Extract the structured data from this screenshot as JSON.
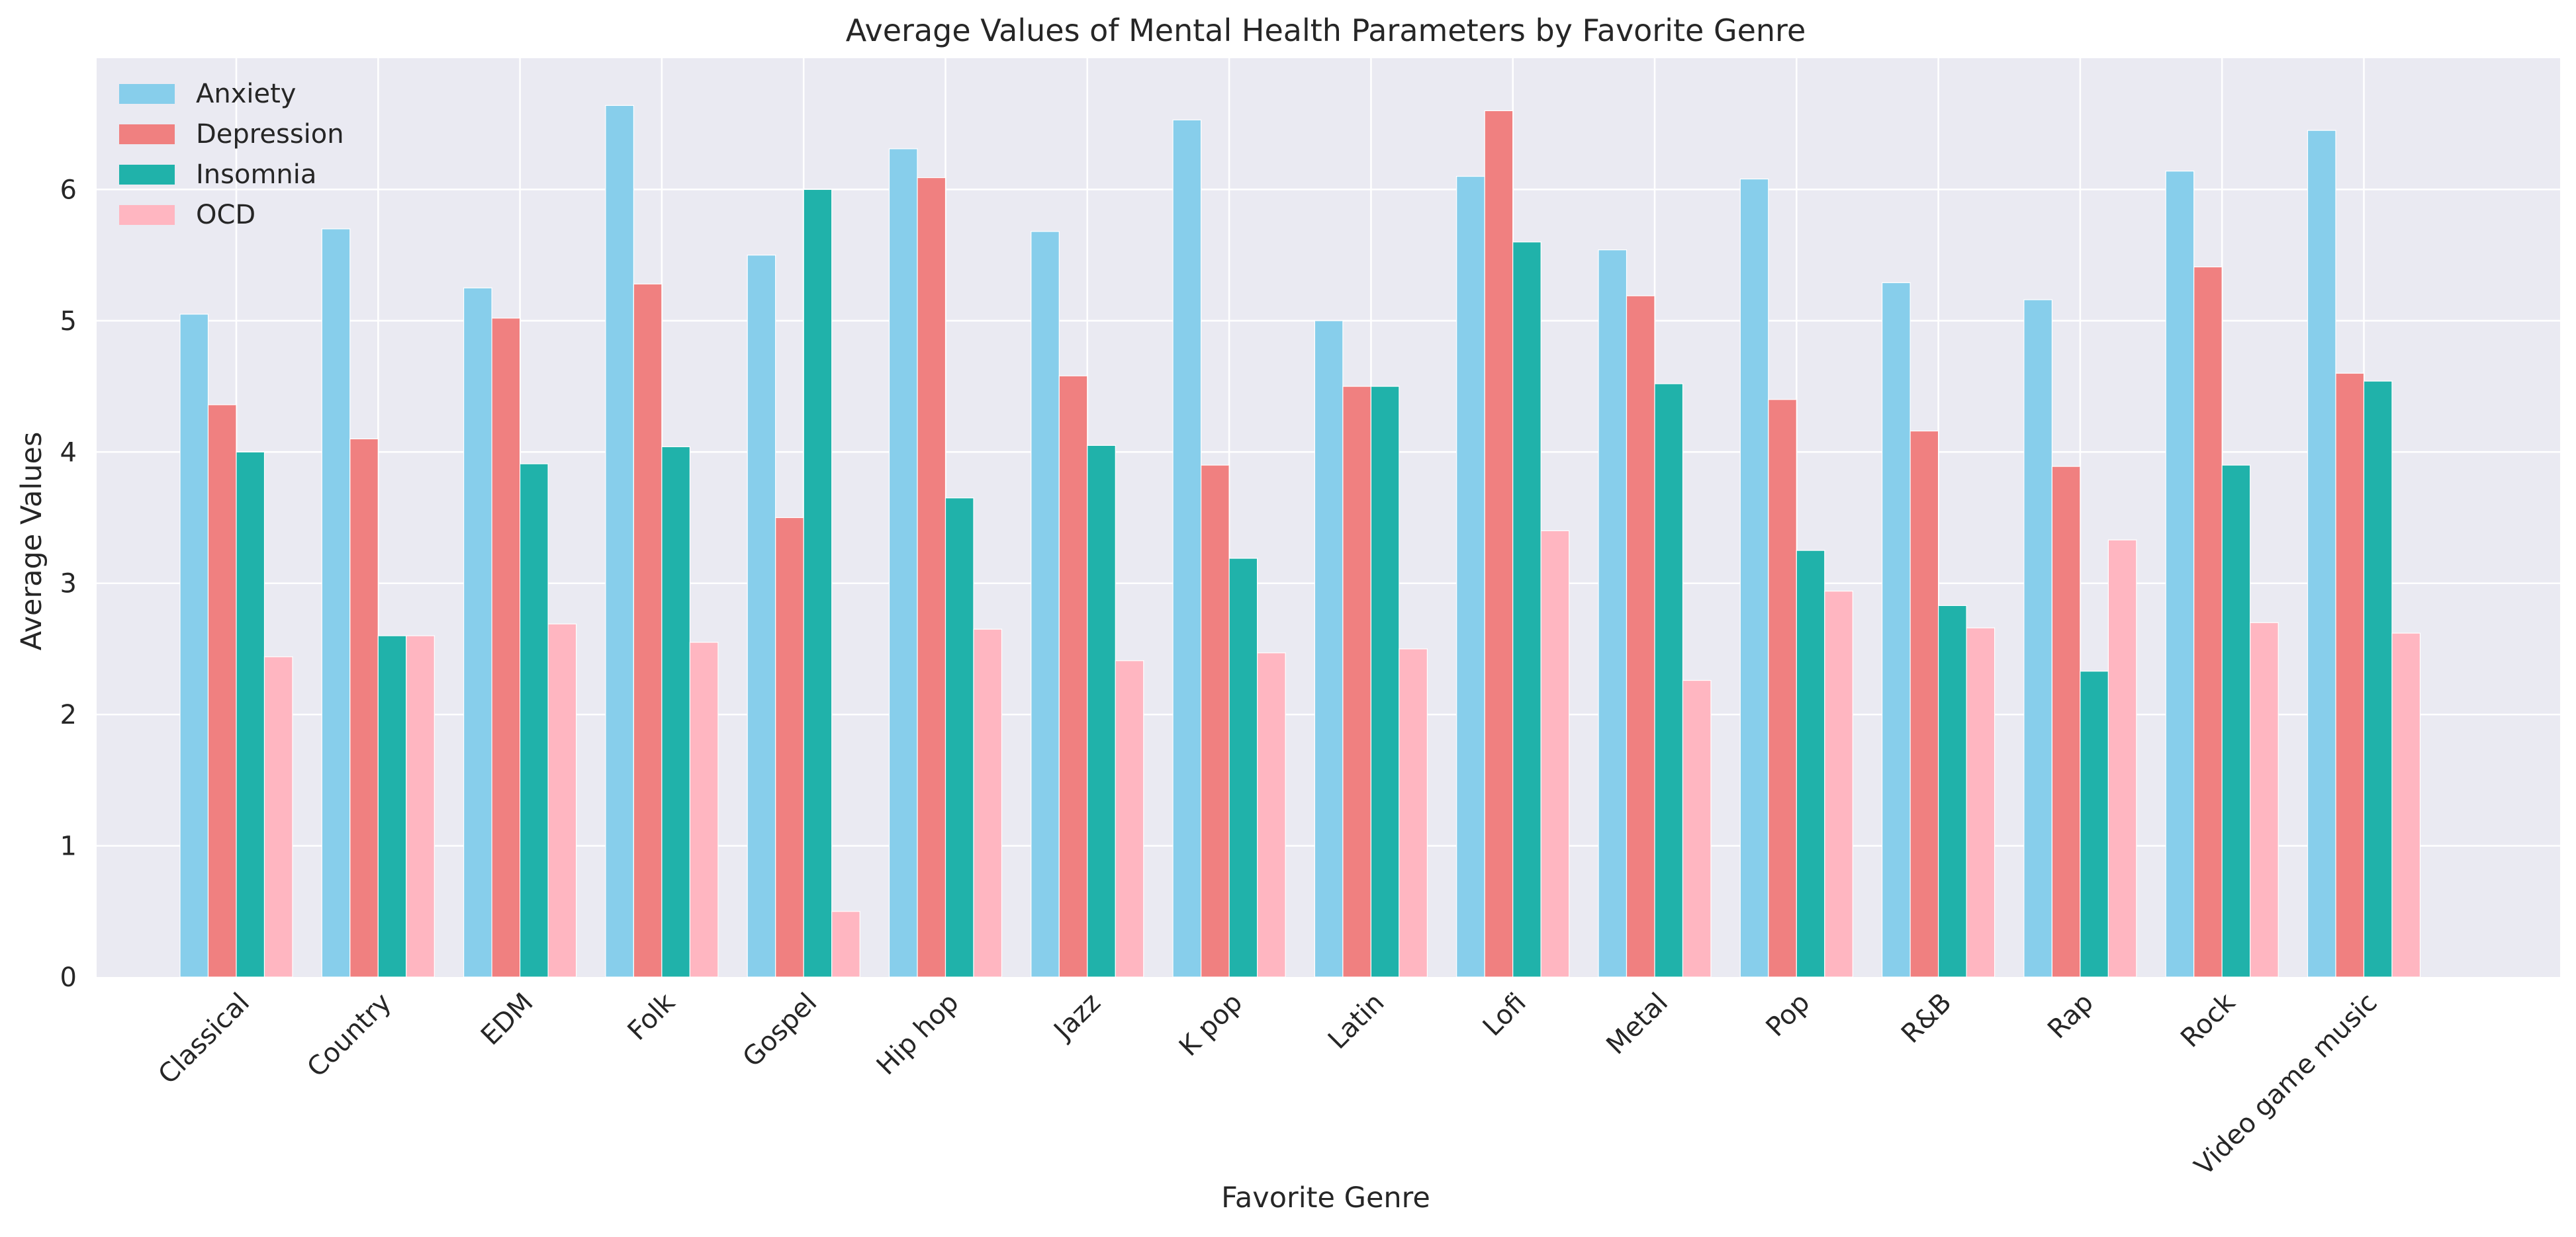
{
  "chart_data": {
    "type": "bar",
    "title": "Average Values of Mental Health Parameters by Favorite Genre",
    "xlabel": "Favorite Genre",
    "ylabel": "Average Values",
    "ylim": [
      0,
      7
    ],
    "yticks": [
      0,
      1,
      2,
      3,
      4,
      5,
      6
    ],
    "grid": true,
    "legend_position": "top-left",
    "categories": [
      "Classical",
      "Country",
      "EDM",
      "Folk",
      "Gospel",
      "Hip hop",
      "Jazz",
      "K pop",
      "Latin",
      "Lofi",
      "Metal",
      "Pop",
      "R&B",
      "Rap",
      "Rock",
      "Video game music"
    ],
    "series": [
      {
        "name": "Anxiety",
        "color": "#87CEEB",
        "values": [
          5.05,
          5.7,
          5.25,
          6.64,
          5.5,
          6.31,
          5.68,
          6.53,
          5.0,
          6.1,
          5.54,
          6.08,
          5.29,
          5.16,
          6.14,
          6.45
        ]
      },
      {
        "name": "Depression",
        "color": "#F08080",
        "values": [
          4.36,
          4.1,
          5.02,
          5.28,
          3.5,
          6.09,
          4.58,
          3.9,
          4.5,
          6.6,
          5.19,
          4.4,
          4.16,
          3.89,
          5.41,
          4.6
        ]
      },
      {
        "name": "Insomnia",
        "color": "#20B2AA",
        "values": [
          4.0,
          2.6,
          3.91,
          4.04,
          6.0,
          3.65,
          4.05,
          3.19,
          4.5,
          5.6,
          4.52,
          3.25,
          2.83,
          2.33,
          3.9,
          4.54
        ]
      },
      {
        "name": "OCD",
        "color": "#FFB6C1",
        "values": [
          2.44,
          2.6,
          2.69,
          2.55,
          0.5,
          2.65,
          2.41,
          2.47,
          2.5,
          3.4,
          2.26,
          2.94,
          2.66,
          3.33,
          2.7,
          2.62
        ]
      }
    ]
  }
}
